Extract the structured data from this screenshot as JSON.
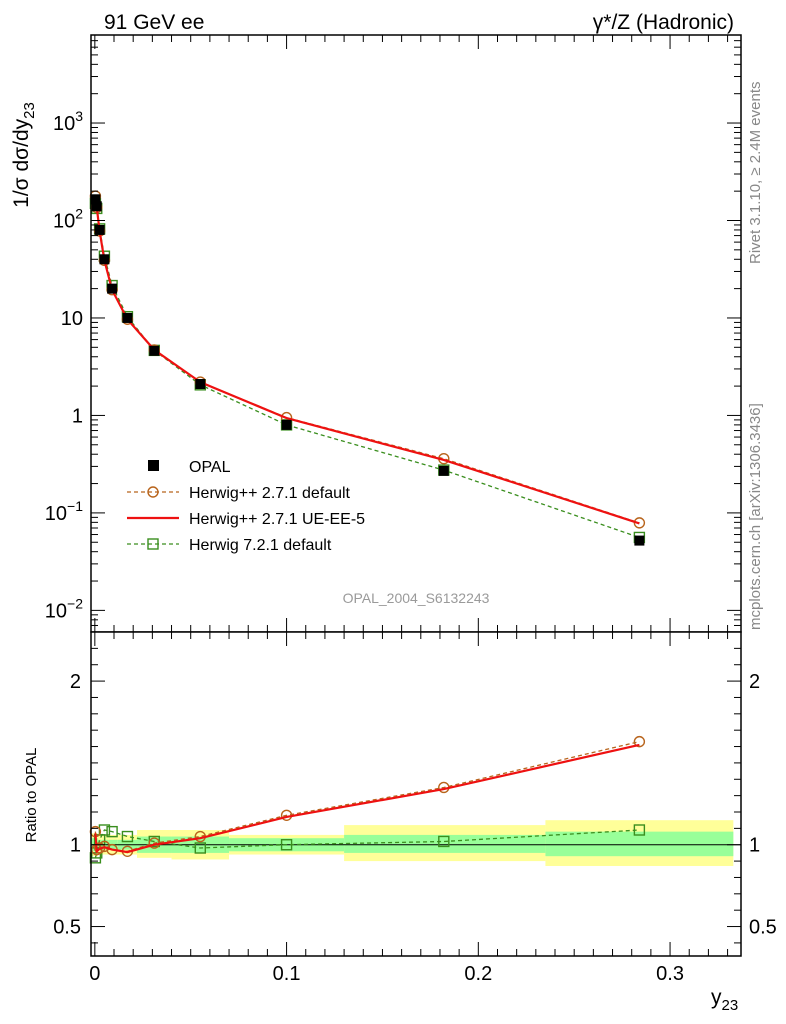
{
  "header": {
    "left_title": "91 GeV ee",
    "right_title": "γ*/Z (Hadronic)"
  },
  "side_text": {
    "rivet": "Rivet 3.1.10, ≥ 2.4M events",
    "mcplots": "mcplots.cern.ch [arXiv:1306.3436]"
  },
  "watermark": "OPAL_2004_S6132243",
  "chart_data": [
    {
      "type": "line",
      "panel": "main",
      "ylabel": "1/σ dσ/dy",
      "ylabel_subscript": "23",
      "yscale": "log",
      "ylim": [
        0.006,
        8000
      ],
      "xlim": [
        -0.002,
        0.337
      ],
      "yticks": [
        {
          "value": 0.01,
          "base": "10",
          "exp": "−2"
        },
        {
          "value": 0.1,
          "base": "10",
          "exp": "−1"
        },
        {
          "value": 1,
          "base": "1",
          "exp": ""
        },
        {
          "value": 10,
          "base": "10",
          "exp": ""
        },
        {
          "value": 100,
          "base": "10",
          "exp": "2"
        },
        {
          "value": 1000,
          "base": "10",
          "exp": "3"
        }
      ],
      "legend_position": "lower-left",
      "series": [
        {
          "name": "OPAL",
          "style": "data",
          "color": "#000000",
          "x": [
            0.0003,
            0.001,
            0.0025,
            0.005,
            0.009,
            0.017,
            0.031,
            0.055,
            0.1,
            0.182,
            0.284
          ],
          "y": [
            165,
            140,
            80,
            40,
            20,
            10,
            4.6,
            2.1,
            0.8,
            0.27,
            0.052
          ]
        },
        {
          "name": "Herwig++ 2.7.1 default",
          "style": "dashed-circle",
          "color": "#b8641c",
          "x": [
            0.0003,
            0.001,
            0.0025,
            0.005,
            0.009,
            0.017,
            0.031,
            0.055,
            0.1,
            0.182,
            0.284
          ],
          "y": [
            178,
            136,
            78,
            39,
            19.5,
            9.7,
            4.7,
            2.2,
            0.95,
            0.36,
            0.079
          ]
        },
        {
          "name": "Herwig++ 2.7.1 UE-EE-5",
          "style": "solid",
          "color": "#ee1111",
          "x": [
            0.0003,
            0.001,
            0.0025,
            0.005,
            0.009,
            0.017,
            0.031,
            0.055,
            0.1,
            0.182,
            0.284
          ],
          "y": [
            176,
            135,
            78,
            39,
            19.4,
            9.7,
            4.7,
            2.2,
            0.94,
            0.35,
            0.078
          ]
        },
        {
          "name": "Herwig 7.2.1 default",
          "style": "dashed-square",
          "color": "#3a8e1e",
          "x": [
            0.0003,
            0.001,
            0.0025,
            0.005,
            0.009,
            0.017,
            0.031,
            0.055,
            0.1,
            0.182,
            0.284
          ],
          "y": [
            150,
            133,
            82,
            43,
            21.5,
            10.3,
            4.65,
            2.06,
            0.8,
            0.275,
            0.056
          ]
        }
      ]
    },
    {
      "type": "line",
      "panel": "ratio",
      "ylabel": "Ratio to OPAL",
      "xlabel": "y",
      "xlabel_subscript": "23",
      "ylim": [
        0.32,
        2.3
      ],
      "xlim": [
        -0.002,
        0.337
      ],
      "xticks": [
        "0",
        "0.1",
        "0.2",
        "0.3"
      ],
      "xtick_values": [
        0,
        0.1,
        0.2,
        0.3
      ],
      "yticks": [
        "0.5",
        "1",
        "2"
      ],
      "ytick_values": [
        0.5,
        1,
        2
      ],
      "bands": [
        {
          "x0": -0.002,
          "x1": 0.0006,
          "inner": [
            0.96,
            1.04
          ],
          "outer": [
            0.93,
            1.07
          ]
        },
        {
          "x0": 0.0006,
          "x1": 0.0016,
          "inner": [
            0.96,
            1.04
          ],
          "outer": [
            0.93,
            1.07
          ]
        },
        {
          "x0": 0.0016,
          "x1": 0.0036,
          "inner": [
            0.97,
            1.03
          ],
          "outer": [
            0.94,
            1.06
          ]
        },
        {
          "x0": 0.0036,
          "x1": 0.007,
          "inner": [
            0.97,
            1.03
          ],
          "outer": [
            0.94,
            1.06
          ]
        },
        {
          "x0": 0.007,
          "x1": 0.012,
          "inner": [
            0.97,
            1.03
          ],
          "outer": [
            0.94,
            1.06
          ]
        },
        {
          "x0": 0.012,
          "x1": 0.022,
          "inner": [
            0.97,
            1.03
          ],
          "outer": [
            0.94,
            1.06
          ]
        },
        {
          "x0": 0.022,
          "x1": 0.04,
          "inner": [
            0.95,
            1.05
          ],
          "outer": [
            0.92,
            1.09
          ]
        },
        {
          "x0": 0.04,
          "x1": 0.07,
          "inner": [
            0.95,
            1.05
          ],
          "outer": [
            0.91,
            1.09
          ]
        },
        {
          "x0": 0.07,
          "x1": 0.13,
          "inner": [
            0.96,
            1.04
          ],
          "outer": [
            0.94,
            1.06
          ]
        },
        {
          "x0": 0.13,
          "x1": 0.235,
          "inner": [
            0.95,
            1.06
          ],
          "outer": [
            0.9,
            1.12
          ]
        },
        {
          "x0": 0.235,
          "x1": 0.333,
          "inner": [
            0.93,
            1.08
          ],
          "outer": [
            0.87,
            1.15
          ]
        }
      ],
      "series": [
        {
          "name": "Herwig++ 2.7.1 default",
          "style": "dashed-circle",
          "color": "#b8641c",
          "x": [
            0.0003,
            0.001,
            0.0025,
            0.005,
            0.009,
            0.017,
            0.031,
            0.055,
            0.1,
            0.182,
            0.284
          ],
          "y": [
            1.08,
            0.97,
            0.98,
            0.99,
            0.97,
            0.96,
            1.01,
            1.05,
            1.18,
            1.35,
            1.63
          ]
        },
        {
          "name": "Herwig++ 2.7.1 UE-EE-5",
          "style": "solid",
          "color": "#ee1111",
          "x": [
            0.0003,
            0.001,
            0.0025,
            0.005,
            0.009,
            0.017,
            0.031,
            0.055,
            0.1,
            0.182,
            0.284
          ],
          "y": [
            1.07,
            0.96,
            0.975,
            0.985,
            0.97,
            0.955,
            1.0,
            1.04,
            1.17,
            1.34,
            1.61
          ]
        },
        {
          "name": "Herwig 7.2.1 default",
          "style": "dashed-square",
          "color": "#3a8e1e",
          "x": [
            0.0003,
            0.001,
            0.0025,
            0.005,
            0.009,
            0.017,
            0.031,
            0.055,
            0.1,
            0.182,
            0.284
          ],
          "y": [
            0.92,
            0.95,
            1.03,
            1.09,
            1.08,
            1.05,
            1.02,
            0.98,
            1.0,
            1.02,
            1.09
          ]
        }
      ]
    }
  ]
}
